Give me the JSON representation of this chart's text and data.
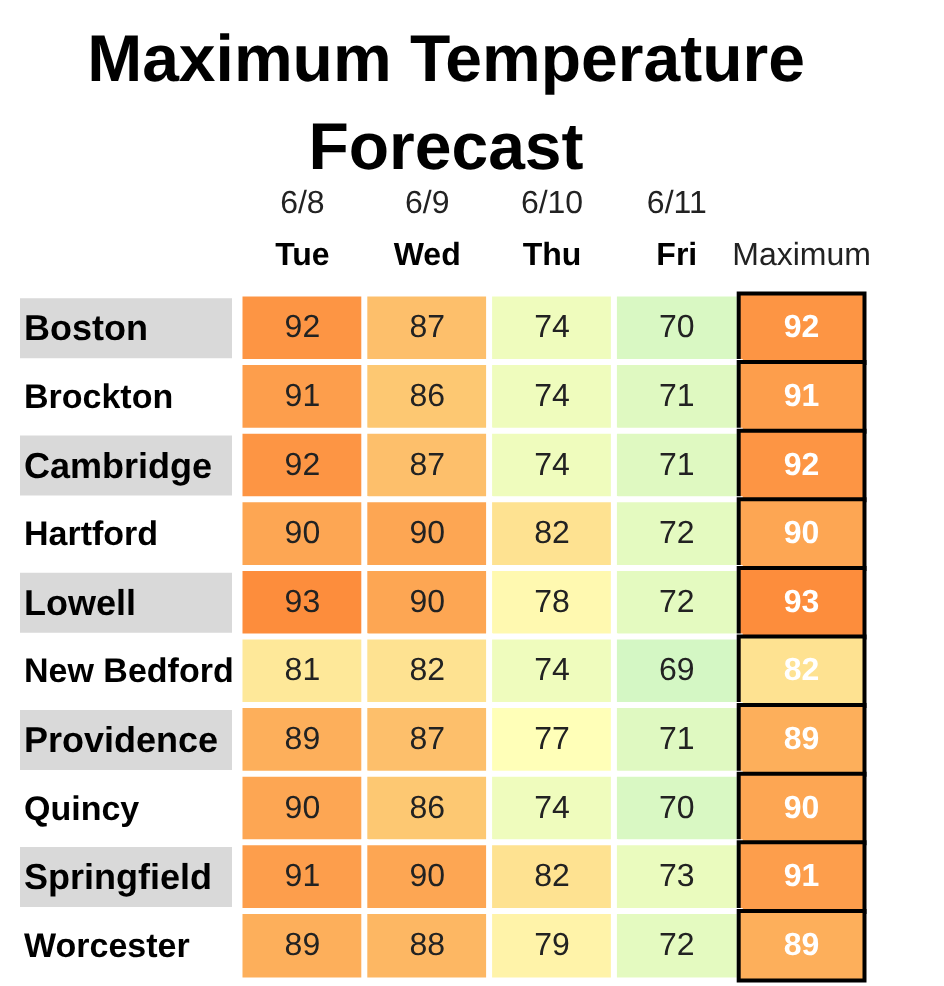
{
  "chart_data": {
    "type": "heatmap",
    "title": "Maximum Temperature Forecast",
    "categories": [
      "6/8\nTue",
      "6/9\nWed",
      "6/10\nThu",
      "6/11\nFri",
      "Maximum"
    ],
    "y_categories": [
      "Boston",
      "Brockton",
      "Cambridge",
      "Hartford",
      "Lowell",
      "New Bedford",
      "Providence",
      "Quincy",
      "Springfield",
      "Worcester"
    ],
    "cells": [
      [
        92,
        87,
        74,
        70,
        92
      ],
      [
        91,
        86,
        74,
        71,
        91
      ],
      [
        92,
        87,
        74,
        71,
        92
      ],
      [
        90,
        90,
        82,
        72,
        90
      ],
      [
        93,
        90,
        78,
        72,
        93
      ],
      [
        81,
        82,
        74,
        69,
        82
      ],
      [
        89,
        87,
        77,
        71,
        89
      ],
      [
        90,
        86,
        74,
        70,
        90
      ],
      [
        91,
        90,
        82,
        73,
        91
      ],
      [
        89,
        88,
        79,
        72,
        89
      ]
    ],
    "data_labels": true
  }
}
